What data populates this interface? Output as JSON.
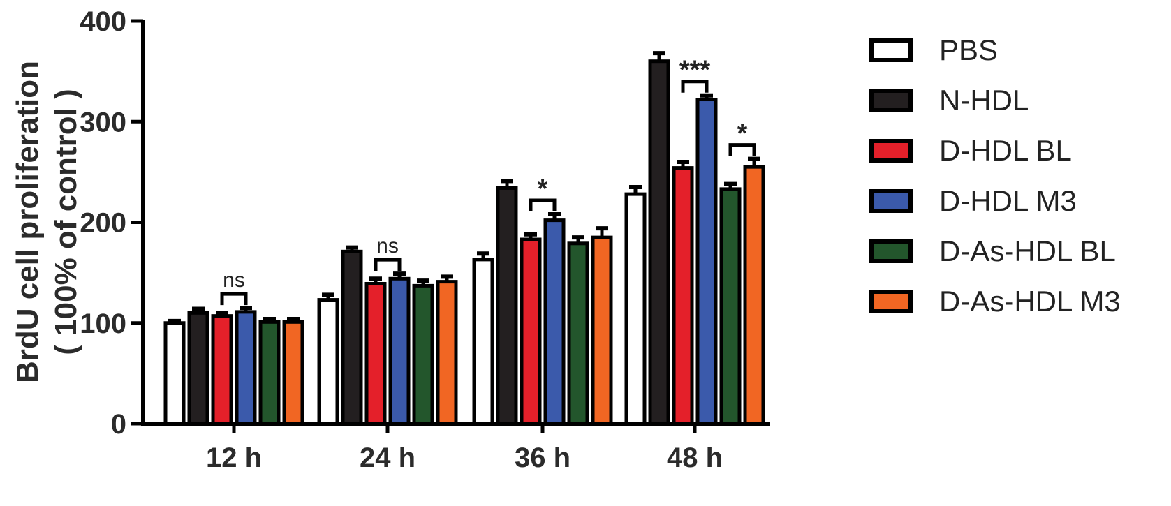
{
  "chart_data": {
    "type": "bar",
    "ylabel_line1": "BrdU cell proliferation",
    "ylabel_line2": "( 100% of control )",
    "ylim": [
      0,
      400
    ],
    "yticks": [
      "0",
      "100",
      "200",
      "300",
      "400"
    ],
    "categories": [
      "12 h",
      "24 h",
      "36 h",
      "48 h"
    ],
    "series": [
      {
        "name": "PBS",
        "color": "#ffffff",
        "values": [
          100,
          123,
          163,
          228
        ],
        "errors": [
          2,
          5,
          6,
          7
        ]
      },
      {
        "name": "N-HDL",
        "color": "#231f20",
        "values": [
          110,
          171,
          234,
          360
        ],
        "errors": [
          4,
          4,
          7,
          8
        ]
      },
      {
        "name": "D-HDL BL",
        "color": "#e4202a",
        "values": [
          107,
          139,
          183,
          254
        ],
        "errors": [
          3,
          5,
          5,
          6
        ]
      },
      {
        "name": "D-HDL M3",
        "color": "#3b5aab",
        "values": [
          111,
          144,
          202,
          322
        ],
        "errors": [
          4,
          5,
          6,
          4
        ]
      },
      {
        "name": "D-As-HDL BL",
        "color": "#23562c",
        "values": [
          101,
          137,
          179,
          233
        ],
        "errors": [
          3,
          5,
          6,
          5
        ]
      },
      {
        "name": "D-As-HDL M3",
        "color": "#f16623",
        "values": [
          101,
          141,
          185,
          255
        ],
        "errors": [
          3,
          5,
          9,
          8
        ]
      }
    ],
    "significance": [
      {
        "category": 0,
        "from": 2,
        "to": 3,
        "label": "ns"
      },
      {
        "category": 1,
        "from": 2,
        "to": 3,
        "label": "ns"
      },
      {
        "category": 2,
        "from": 2,
        "to": 3,
        "label": "*"
      },
      {
        "category": 3,
        "from": 2,
        "to": 3,
        "label": "***"
      },
      {
        "category": 3,
        "from": 4,
        "to": 5,
        "label": "*"
      }
    ],
    "legend_position": "right",
    "grid": false
  }
}
